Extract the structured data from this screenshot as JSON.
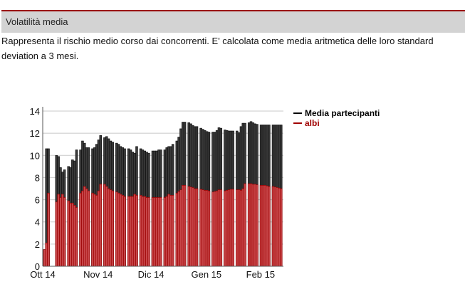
{
  "section": {
    "title": "Volatilità media",
    "description": "Rappresenta il rischio medio corso dai concorrenti. E' calcolata come media aritmetica delle loro standard deviation a 3 mesi."
  },
  "chart_data": {
    "type": "bar",
    "title": "",
    "xlabel": "",
    "ylabel": "",
    "ylim": [
      0,
      14
    ],
    "yticks": [
      "0",
      "2",
      "4",
      "6",
      "8",
      "10",
      "12",
      "14"
    ],
    "grid": true,
    "legend_position": "top-right",
    "x_unit": "week index (weekly groups of trading days)",
    "xticks": [
      {
        "label": "Ott 14",
        "week": 0
      },
      {
        "label": "Nov 14",
        "week": 4.6
      },
      {
        "label": "Dic 14",
        "week": 9.0
      },
      {
        "label": "Gen 15",
        "week": 13.6
      },
      {
        "label": "Feb 15",
        "week": 18.1
      }
    ],
    "series": [
      {
        "name": "Media partecipanti",
        "color": "#3a3a3a",
        "legend_color": "#000000",
        "weeks": [
          [
            1.5,
            10.6,
            10.6
          ],
          [
            10.0,
            9.9,
            8.9,
            8.5,
            8.7
          ],
          [
            9.0,
            8.9,
            9.6,
            9.5,
            10.5
          ],
          [
            10.5,
            11.3,
            11.1,
            10.7,
            10.7
          ],
          [
            10.6,
            10.7,
            11.0,
            11.4,
            11.8
          ],
          [
            11.6,
            11.7,
            11.5,
            11.3,
            11.2
          ],
          [
            11.1,
            11.0,
            10.8,
            10.7,
            10.6
          ],
          [
            10.6,
            10.5,
            10.3,
            10.2,
            10.8
          ],
          [
            10.6,
            10.5,
            10.4,
            10.3,
            10.2
          ],
          [
            10.4,
            10.4,
            10.4,
            10.5,
            10.5
          ],
          [
            10.5,
            10.7,
            10.8,
            10.8,
            11.0
          ],
          [
            11.3,
            11.65,
            12.4,
            13.0,
            13.0
          ],
          [
            12.95,
            12.85,
            12.7,
            12.6,
            12.6
          ],
          [
            12.45,
            12.35,
            12.25,
            12.15,
            12.1
          ],
          [
            12.1,
            12.1,
            12.25,
            12.5,
            12.45
          ],
          [
            12.3,
            12.25,
            12.2,
            12.2,
            12.2
          ],
          [
            12.2,
            12.05,
            12.6,
            12.9,
            12.9
          ],
          [
            12.95,
            13.05,
            12.95,
            12.85,
            12.8
          ],
          [
            12.75,
            12.75,
            12.75,
            12.75,
            12.75
          ],
          [
            12.75,
            12.75,
            12.75,
            12.75,
            12.75
          ]
        ]
      },
      {
        "name": "albi",
        "color": "#c8474a",
        "legend_color": "#a00000",
        "weeks": [
          [
            1.5,
            2.1,
            6.6
          ],
          [
            5.8,
            6.5,
            6.2,
            6.5,
            6.2
          ],
          [
            5.9,
            5.7,
            5.7,
            5.5,
            5.3
          ],
          [
            6.6,
            6.8,
            7.2,
            7.0,
            6.8
          ],
          [
            6.6,
            6.5,
            6.4,
            6.8,
            7.4
          ],
          [
            7.4,
            7.2,
            7.0,
            6.9,
            6.8
          ],
          [
            6.7,
            6.6,
            6.5,
            6.4,
            6.3
          ],
          [
            6.3,
            6.3,
            6.3,
            6.5,
            6.4
          ],
          [
            6.4,
            6.3,
            6.3,
            6.2,
            6.2
          ],
          [
            6.2,
            6.2,
            6.2,
            6.2,
            6.2
          ],
          [
            6.2,
            6.3,
            6.5,
            6.4,
            6.4
          ],
          [
            6.6,
            6.75,
            6.9,
            7.3,
            7.3
          ],
          [
            7.2,
            7.15,
            7.1,
            7.0,
            7.0
          ],
          [
            6.95,
            6.9,
            6.85,
            6.85,
            6.8
          ],
          [
            6.7,
            6.75,
            6.8,
            6.9,
            6.9
          ],
          [
            6.8,
            6.85,
            6.9,
            6.95,
            6.95
          ],
          [
            6.9,
            6.9,
            6.85,
            7.0,
            7.45
          ],
          [
            7.45,
            7.45,
            7.4,
            7.4,
            7.35
          ],
          [
            7.3,
            7.3,
            7.3,
            7.25,
            7.2
          ],
          [
            7.2,
            7.15,
            7.1,
            7.05,
            7.0
          ]
        ]
      }
    ]
  }
}
